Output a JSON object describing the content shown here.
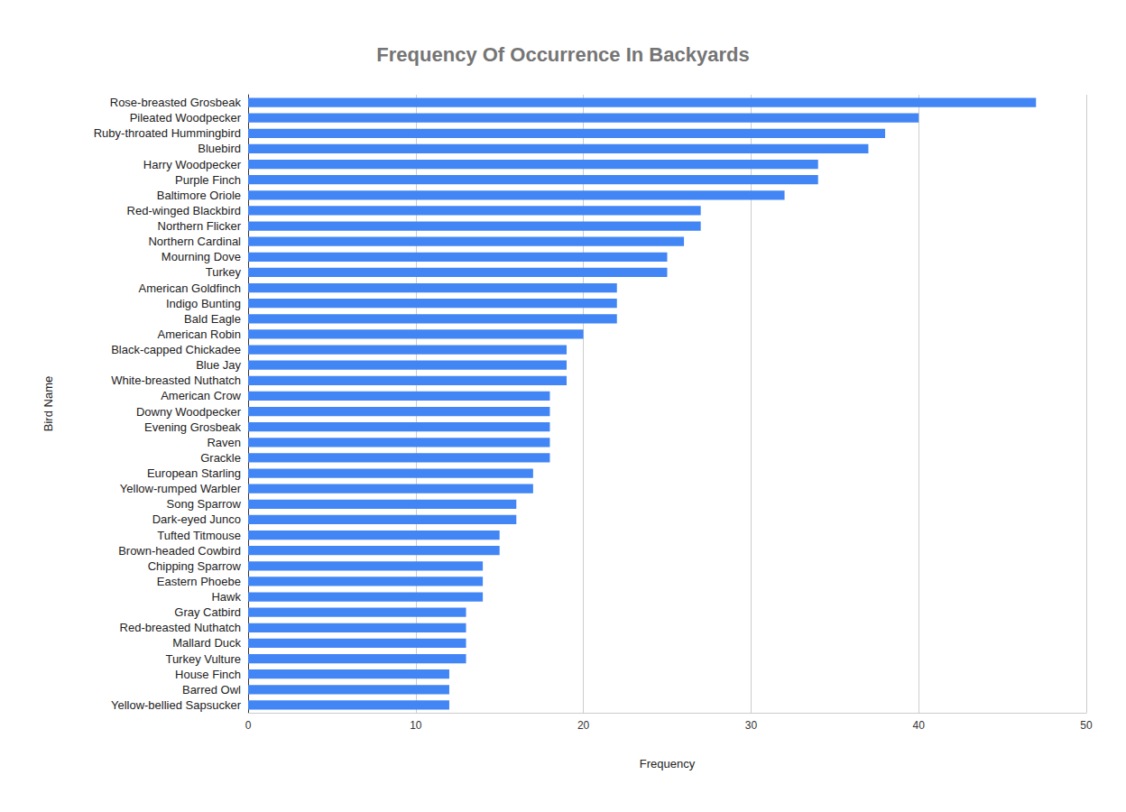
{
  "chart_data": {
    "type": "bar",
    "title": "Frequency Of Occurrence In Backyards",
    "orientation": "horizontal",
    "x_label": "Frequency",
    "y_label": "Bird Name",
    "categories": [
      "Rose-breasted Grosbeak",
      "Pileated Woodpecker",
      "Ruby-throated Hummingbird",
      "Bluebird",
      "Harry Woodpecker",
      "Purple Finch",
      "Baltimore Oriole",
      "Red-winged Blackbird",
      "Northern Flicker",
      "Northern Cardinal",
      "Mourning Dove",
      "Turkey",
      "American Goldfinch",
      "Indigo Bunting",
      "Bald Eagle",
      "American Robin",
      "Black-capped Chickadee",
      "Blue Jay",
      "White-breasted Nuthatch",
      "American Crow",
      "Downy Woodpecker",
      "Evening Grosbeak",
      "Raven",
      "Grackle",
      "European Starling",
      "Yellow-rumped Warbler",
      "Song Sparrow",
      "Dark-eyed Junco",
      "Tufted Titmouse",
      "Brown-headed Cowbird",
      "Chipping Sparrow",
      "Eastern Phoebe",
      "Hawk",
      "Gray Catbird",
      "Red-breasted Nuthatch",
      "Mallard Duck",
      "Turkey Vulture",
      "House Finch",
      "Barred Owl",
      "Yellow-bellied Sapsucker"
    ],
    "values": [
      47,
      40,
      38,
      37,
      34,
      34,
      32,
      27,
      27,
      26,
      25,
      25,
      22,
      22,
      22,
      20,
      19,
      19,
      19,
      18,
      18,
      18,
      18,
      18,
      17,
      17,
      16,
      16,
      15,
      15,
      14,
      14,
      14,
      13,
      13,
      13,
      13,
      12,
      12,
      12
    ],
    "color": "#4285f4",
    "xlim": [
      0,
      50
    ],
    "xticks": [
      0,
      10,
      20,
      30,
      40,
      50
    ],
    "grid": true
  }
}
